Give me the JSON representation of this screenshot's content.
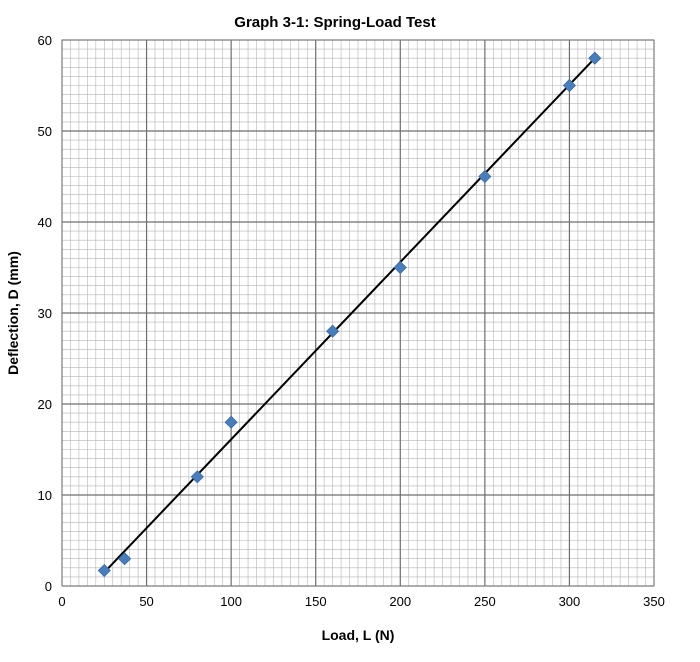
{
  "chart_data": {
    "type": "scatter",
    "title": "Graph 3-1: Spring-Load Test",
    "xlabel": "Load, L (N)",
    "ylabel": "Deflection, D (mm)",
    "xlim": [
      0,
      350
    ],
    "ylim": [
      0,
      60
    ],
    "x_ticks": [
      "0",
      "50",
      "100",
      "150",
      "200",
      "250",
      "300",
      "350"
    ],
    "y_ticks": [
      "0",
      "10",
      "20",
      "30",
      "40",
      "50",
      "60"
    ],
    "grid": true,
    "legend": "none",
    "marker_color": "#4a7ebb",
    "trendline_color": "#000000",
    "series": [
      {
        "x": [
          25,
          37,
          80,
          100,
          160,
          200,
          250,
          300,
          315
        ],
        "y": [
          1.7,
          3,
          12,
          18,
          28,
          35,
          45,
          55,
          58
        ]
      }
    ],
    "trendline": {
      "type": "linear",
      "x": [
        25,
        315
      ],
      "y": [
        1.5,
        58
      ]
    }
  }
}
